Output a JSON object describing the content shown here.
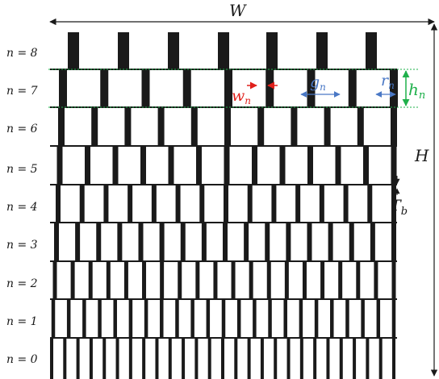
{
  "diagram": {
    "row_labels": [
      "n = 8",
      "n = 7",
      "n = 6",
      "n = 5",
      "n = 4",
      "n = 3",
      "n = 2",
      "n = 1",
      "n = 0"
    ],
    "width_label": "W",
    "height_label": "H",
    "base_thickness": {
      "main": "T",
      "sub": "b"
    },
    "params": [
      {
        "main": "w",
        "sub": "n",
        "color": "#e0201b"
      },
      {
        "main": "g",
        "sub": "n",
        "color": "#4a78c5"
      },
      {
        "main": "r",
        "sub": "n",
        "color": "#4a78c5"
      },
      {
        "main": "h",
        "sub": "n",
        "color": "#1fb04b"
      }
    ],
    "strut_color": "#1a1a1a",
    "guide_color": "#1fb04b"
  }
}
